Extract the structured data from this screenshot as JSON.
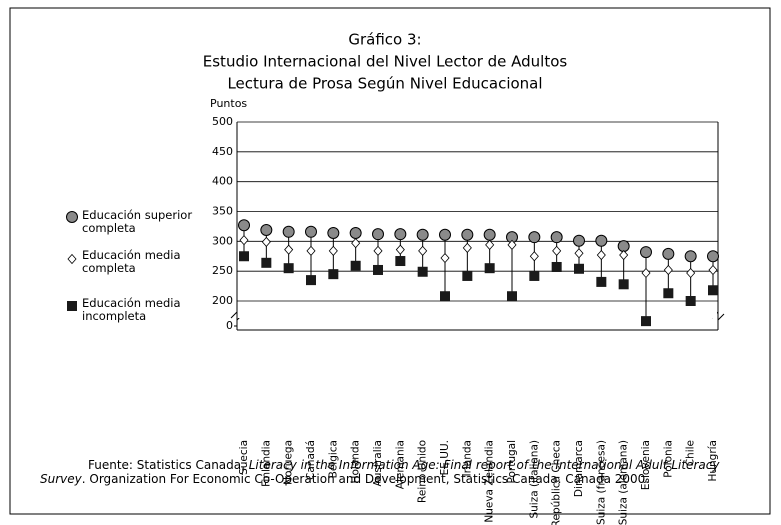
{
  "chart_data": {
    "type": "dotplot",
    "title": [
      "Gráfico 3:",
      "Estudio Internacional del Nivel Lector de Adultos",
      "Lectura de Prosa Según Nivel Educacional"
    ],
    "y_label": "Puntos",
    "categories": [
      "Suecia",
      "Finlandia",
      "Noruega",
      "Canadá",
      "Bélgica",
      "Holanda",
      "Australia",
      "Alemania",
      "Reino Unido",
      "EE.UU.",
      "Irlanda",
      "Nueva Zelandia",
      "Portugal",
      "Suiza (italiana)",
      "República Checa",
      "Dinamarca",
      "Suiza (francesa)",
      "Suiza (alemana)",
      "Eslovenia",
      "Polonia",
      "Chile",
      "Hungría"
    ],
    "series": [
      {
        "name": "Educación superior completa",
        "color": "#8a8a8a",
        "marker": "circle",
        "values": [
          327,
          319,
          316,
          316,
          314,
          314,
          312,
          312,
          311,
          311,
          311,
          311,
          307,
          307,
          307,
          301,
          301,
          292,
          282,
          279,
          275,
          275
        ]
      },
      {
        "name": "Educación media completa",
        "color": "#ffffff",
        "marker": "diamond",
        "values": [
          302,
          299,
          286,
          284,
          284,
          297,
          284,
          286,
          284,
          272,
          289,
          294,
          294,
          275,
          284,
          280,
          277,
          277,
          247,
          252,
          247,
          252
        ]
      },
      {
        "name": "Educación media incompleta",
        "color": "#1a1a1a",
        "marker": "square",
        "values": [
          275,
          264,
          255,
          235,
          245,
          259,
          252,
          267,
          249,
          208,
          242,
          255,
          208,
          242,
          257,
          254,
          232,
          228,
          195,
          213,
          200,
          218
        ]
      }
    ],
    "ylim": [
      0,
      500
    ],
    "axis_break": [
      0,
      200
    ],
    "yticks": [
      0,
      200,
      250,
      300,
      350,
      400,
      450,
      500
    ],
    "grid": true,
    "footnote": {
      "before": "Fuente: Statistics Canada, ",
      "italic": "Literacy  in the Information Age: Final report of the International Adult Literacy Survey",
      "after": ". Organization For Economic Co-Operation and Development, Statistics Canada. Canada 2000."
    }
  }
}
